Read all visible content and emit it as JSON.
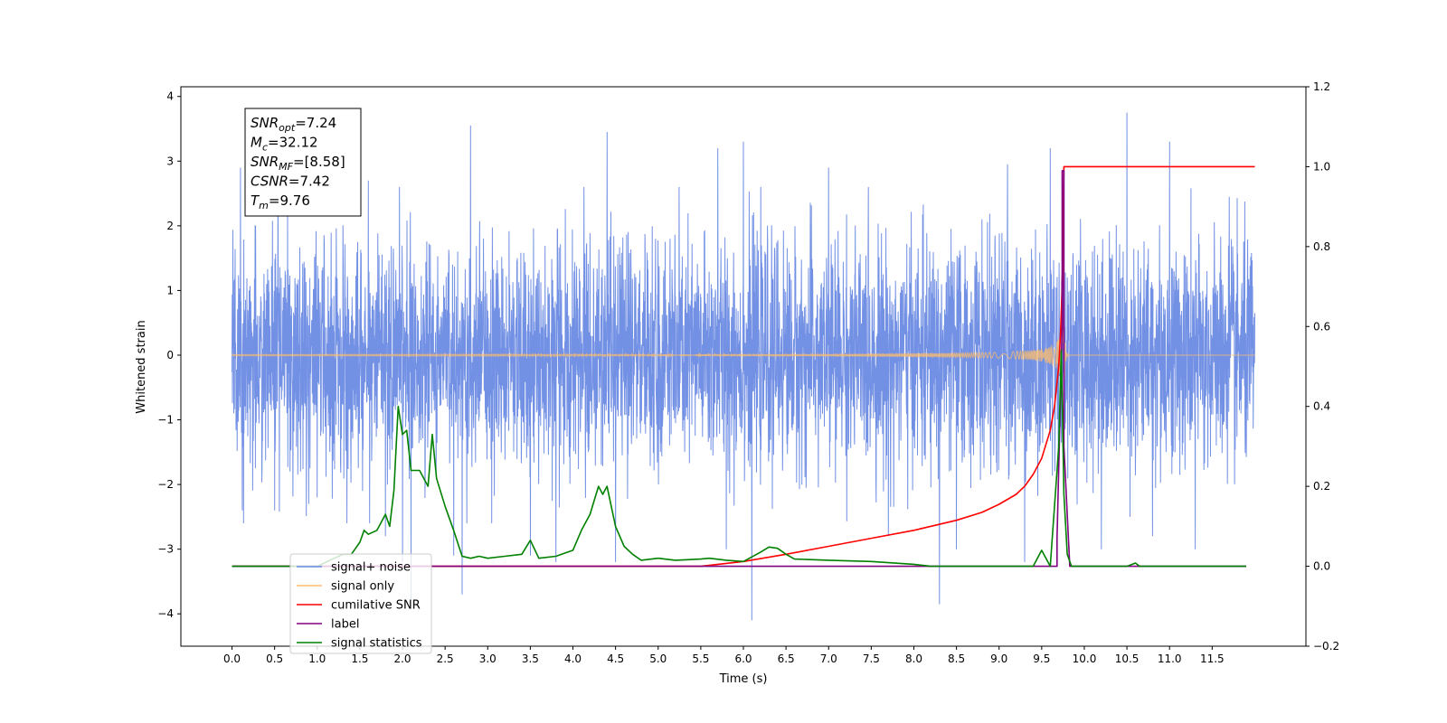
{
  "chart_data": {
    "type": "line",
    "xlabel": "Time (s)",
    "ylabel": "Whitened strain",
    "xlim": [
      -0.6,
      12.6
    ],
    "ylim": [
      -4.5,
      4.15
    ],
    "y2lim": [
      -0.2,
      1.2
    ],
    "x_ticks": [
      "0.0",
      "0.5",
      "1.0",
      "1.5",
      "2.0",
      "2.5",
      "3.0",
      "3.5",
      "4.0",
      "4.5",
      "5.0",
      "5.5",
      "6.0",
      "6.5",
      "7.0",
      "7.5",
      "8.0",
      "8.5",
      "9.0",
      "9.5",
      "10.0",
      "10.5",
      "11.0",
      "11.5"
    ],
    "y_ticks": [
      "4",
      "3",
      "2",
      "1",
      "0",
      "−1",
      "−2",
      "−3",
      "−4"
    ],
    "y2_ticks": [
      "1.2",
      "1.0",
      "0.8",
      "0.6",
      "0.4",
      "0.2",
      "0.0",
      "−0.2"
    ],
    "annotation": {
      "lines": [
        {
          "base": "SNR",
          "sub": "opt",
          "value": "=7.24"
        },
        {
          "base": "M",
          "sub": "c",
          "value": "=32.12"
        },
        {
          "base": "SNR",
          "sub": "MF",
          "value": "=[8.58]"
        },
        {
          "base": "CSNR",
          "sub": "",
          "value": "=7.42"
        },
        {
          "base": "T",
          "sub": "m",
          "value": "=9.76"
        }
      ]
    },
    "legend": {
      "placement": "lower-left",
      "entries": [
        {
          "label": "signal+ noise",
          "color": "#6a8ae3"
        },
        {
          "label": "signal only",
          "color": "#ffbe6b"
        },
        {
          "label": "cumilative SNR",
          "color": "#ff0000"
        },
        {
          "label": "label",
          "color": "#800080"
        },
        {
          "label": "signal statistics",
          "color": "#008000"
        }
      ]
    },
    "series": [
      {
        "name": "signal+ noise",
        "axis": "left",
        "color": "#6a8ae3",
        "description_values": {
          "t_start": 0.0,
          "t_end": 12.0,
          "sigma": 0.85
        },
        "spikes": [
          [
            0.1,
            2.9
          ],
          [
            0.12,
            -2.4
          ],
          [
            0.5,
            -2.4
          ],
          [
            0.9,
            -2.3
          ],
          [
            1.0,
            -2.2
          ],
          [
            1.6,
            2.7
          ],
          [
            1.8,
            -2.8
          ],
          [
            2.0,
            -3.2
          ],
          [
            2.1,
            -3.6
          ],
          [
            2.1,
            -3.8
          ],
          [
            2.8,
            3.55
          ],
          [
            2.6,
            -3.1
          ],
          [
            2.7,
            -3.7
          ],
          [
            3.5,
            -3.1
          ],
          [
            3.8,
            -3.2
          ],
          [
            4.4,
            3.45
          ],
          [
            4.5,
            -3.2
          ],
          [
            5.7,
            3.2
          ],
          [
            5.8,
            -3.0
          ],
          [
            6.0,
            -3.4
          ],
          [
            6.1,
            -4.1
          ],
          [
            6.0,
            3.3
          ],
          [
            7.0,
            2.9
          ],
          [
            7.7,
            -2.8
          ],
          [
            8.3,
            -3.85
          ],
          [
            8.5,
            -3.0
          ],
          [
            9.1,
            2.95
          ],
          [
            9.3,
            -3.2
          ],
          [
            9.6,
            3.2
          ],
          [
            10.2,
            -3.0
          ],
          [
            10.5,
            3.75
          ],
          [
            10.8,
            -2.8
          ],
          [
            11.0,
            3.3
          ],
          [
            11.3,
            -3.0
          ],
          [
            11.7,
            2.45
          ]
        ]
      },
      {
        "name": "signal only",
        "axis": "left",
        "color": "#ffbe6b",
        "description_values": {
          "t_merger": 9.76,
          "peak_amplitude": 0.75
        }
      },
      {
        "name": "cumilative SNR",
        "axis": "right",
        "color": "#ff0000",
        "x": [
          0.0,
          5.5,
          6.0,
          6.5,
          7.0,
          7.5,
          8.0,
          8.5,
          8.8,
          9.0,
          9.2,
          9.3,
          9.4,
          9.5,
          9.6,
          9.65,
          9.7,
          9.72,
          9.74,
          9.75,
          9.76,
          12.0
        ],
        "y": [
          0.0,
          0.0,
          0.012,
          0.03,
          0.05,
          0.07,
          0.09,
          0.115,
          0.135,
          0.155,
          0.18,
          0.2,
          0.23,
          0.27,
          0.34,
          0.4,
          0.5,
          0.58,
          0.7,
          0.85,
          1.0,
          1.0
        ]
      },
      {
        "name": "label",
        "axis": "right",
        "color": "#800080",
        "x": [
          0.0,
          9.68,
          9.68,
          9.74,
          9.74,
          9.76,
          9.76,
          9.83,
          9.83,
          11.9
        ],
        "y": [
          0.0,
          0.0,
          0.07,
          0.6,
          0.99,
          0.99,
          0.3,
          0.0,
          0.0,
          0.0
        ]
      },
      {
        "name": "signal statistics",
        "axis": "right",
        "color": "#008000",
        "x": [
          0.0,
          1.0,
          1.2,
          1.3,
          1.4,
          1.5,
          1.55,
          1.6,
          1.7,
          1.8,
          1.85,
          1.9,
          1.95,
          2.0,
          2.05,
          2.1,
          2.2,
          2.3,
          2.35,
          2.4,
          2.5,
          2.6,
          2.7,
          2.8,
          2.9,
          3.0,
          3.2,
          3.4,
          3.5,
          3.6,
          3.8,
          4.0,
          4.1,
          4.2,
          4.3,
          4.35,
          4.4,
          4.5,
          4.6,
          4.7,
          4.8,
          5.0,
          5.2,
          5.5,
          5.6,
          5.8,
          6.0,
          6.2,
          6.3,
          6.4,
          6.5,
          6.6,
          7.0,
          7.5,
          8.0,
          8.2,
          9.4,
          9.5,
          9.6,
          9.7,
          9.73,
          9.76,
          9.8,
          9.85,
          10.0,
          10.5,
          10.6,
          10.65,
          11.9
        ],
        "y": [
          0.0,
          0.0,
          0.02,
          0.03,
          0.03,
          0.06,
          0.09,
          0.08,
          0.09,
          0.13,
          0.1,
          0.19,
          0.4,
          0.33,
          0.34,
          0.24,
          0.24,
          0.2,
          0.33,
          0.22,
          0.15,
          0.09,
          0.025,
          0.02,
          0.025,
          0.02,
          0.025,
          0.03,
          0.065,
          0.02,
          0.025,
          0.04,
          0.09,
          0.13,
          0.2,
          0.18,
          0.2,
          0.1,
          0.05,
          0.03,
          0.015,
          0.02,
          0.015,
          0.018,
          0.02,
          0.015,
          0.012,
          0.035,
          0.048,
          0.045,
          0.03,
          0.018,
          0.015,
          0.012,
          0.005,
          0.0,
          0.0,
          0.04,
          0.0,
          0.3,
          0.54,
          0.18,
          0.03,
          0.0,
          0.0,
          0.0,
          0.008,
          0.0,
          0.0
        ]
      }
    ]
  }
}
